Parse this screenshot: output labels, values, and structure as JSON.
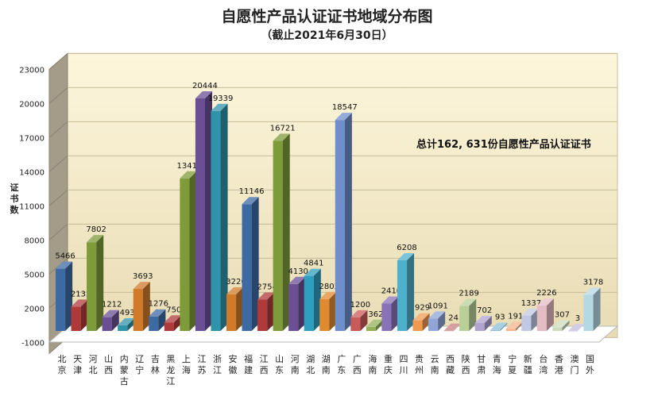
{
  "chart_data": {
    "type": "bar",
    "style": "3d-column",
    "title": "自愿性产品认证证书地域分布图",
    "subtitle": "（截止2021年6月30日）",
    "ylabel": "证书数",
    "xlabel": "",
    "ylim": [
      -1000,
      23000
    ],
    "yticks": [
      -1000,
      2000,
      5000,
      8000,
      11000,
      14000,
      17000,
      20000,
      23000
    ],
    "grid": true,
    "annotation": "总计162, 631份自愿性产品认证证书",
    "categories": [
      "北京",
      "天津",
      "河北",
      "山西",
      "内蒙古",
      "辽宁",
      "吉林",
      "黑龙江",
      "上海",
      "江苏",
      "浙江",
      "安徽",
      "福建",
      "江西",
      "山东",
      "河南",
      "湖北",
      "湖南",
      "广东",
      "广西",
      "海南",
      "重庆",
      "四川",
      "贵州",
      "云南",
      "西藏",
      "陕西",
      "甘肃",
      "青海",
      "宁夏",
      "新疆",
      "台湾",
      "香港",
      "澳门",
      "国外"
    ],
    "values": [
      5466,
      2133,
      7802,
      1212,
      493,
      3693,
      1276,
      750,
      13412,
      20444,
      19339,
      3220,
      11146,
      2754,
      16721,
      4130,
      4841,
      2802,
      18547,
      1200,
      362,
      2410,
      6208,
      929,
      1091,
      24,
      2189,
      702,
      93,
      191,
      1337,
      2226,
      307,
      3,
      3178
    ],
    "colors": [
      "#3e6aa4",
      "#b03a3a",
      "#7e9b3a",
      "#6a4f94",
      "#2f93ab",
      "#d07a2a",
      "#3e6aa4",
      "#b03a3a",
      "#7e9b3a",
      "#6a4f94",
      "#2f93ab",
      "#d07a2a",
      "#3e6aa4",
      "#b03a3a",
      "#7e9b3a",
      "#6a4f94",
      "#2f9fbf",
      "#e08a30",
      "#6f8fcc",
      "#c95a5a",
      "#93b25a",
      "#8a72b8",
      "#4fb0cc",
      "#f09a50",
      "#8fa6d8",
      "#c98080",
      "#b8d098",
      "#b0a4d0",
      "#8cc0d8",
      "#f4b48c",
      "#c0c8e4",
      "#e4bcc4",
      "#ccdcbc",
      "#c4bcdc",
      "#b4d8e4"
    ],
    "show_data_labels": true
  }
}
